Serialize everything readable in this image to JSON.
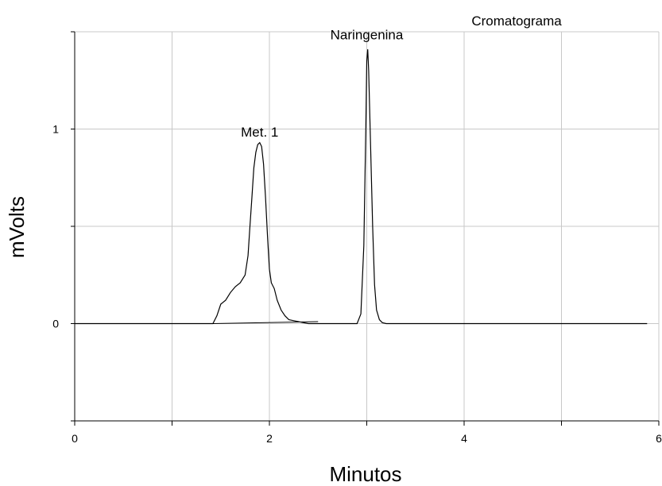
{
  "chart_data": {
    "type": "line",
    "title": "Cromatograma",
    "xlabel": "Minutos",
    "ylabel": "mVolts",
    "xlim": [
      0,
      6
    ],
    "ylim": [
      -0.5,
      1.5
    ],
    "grid": true,
    "x_ticks": [
      0,
      1,
      2,
      3,
      4,
      5,
      6
    ],
    "x_tick_labels": [
      "0",
      "",
      "2",
      "",
      "4",
      "",
      "6"
    ],
    "y_ticks": [
      -0.5,
      0,
      0.5,
      1,
      1.5
    ],
    "y_tick_labels": [
      "",
      "0",
      "",
      "1",
      ""
    ],
    "annotations": [
      {
        "text": "Met. 1",
        "x": 1.9,
        "y": 0.95
      },
      {
        "text": "Naringenina",
        "x": 3.0,
        "y": 1.45
      }
    ],
    "series": [
      {
        "x": [
          0,
          0.5,
          1.0,
          1.42,
          1.46,
          1.5,
          1.55,
          1.6,
          1.65,
          1.7,
          1.75,
          1.78,
          1.8,
          1.82,
          1.84,
          1.86,
          1.88,
          1.9,
          1.92,
          1.94,
          1.96,
          1.98,
          2.0,
          2.02,
          2.05,
          2.08,
          2.12,
          2.16,
          2.2,
          2.25,
          2.3,
          2.35,
          2.4,
          2.45,
          2.5,
          2.7,
          2.9,
          2.94,
          2.97,
          2.99,
          3.0,
          3.01,
          3.02,
          3.04,
          3.06,
          3.08,
          3.1,
          3.13,
          3.16,
          3.2,
          3.3,
          3.5,
          3.7,
          4.0,
          4.5,
          5.0,
          5.3,
          5.5,
          5.88
        ],
        "y": [
          0.0,
          0.0,
          0.0,
          0.0,
          0.04,
          0.1,
          0.12,
          0.16,
          0.19,
          0.21,
          0.25,
          0.35,
          0.5,
          0.65,
          0.8,
          0.88,
          0.92,
          0.93,
          0.91,
          0.82,
          0.65,
          0.45,
          0.28,
          0.21,
          0.18,
          0.12,
          0.07,
          0.04,
          0.02,
          0.015,
          0.01,
          0.005,
          0.0,
          0.0,
          0.0,
          0.0,
          0.0,
          0.05,
          0.4,
          1.0,
          1.35,
          1.41,
          1.3,
          0.9,
          0.5,
          0.2,
          0.07,
          0.02,
          0.005,
          0.0,
          0.0,
          0.0,
          0.0,
          0.0,
          0.0,
          0.0,
          0.0,
          0.0,
          0.0
        ]
      }
    ],
    "baseline": {
      "x": [
        1.42,
        2.5
      ],
      "y": [
        0.0,
        0.01
      ]
    }
  }
}
